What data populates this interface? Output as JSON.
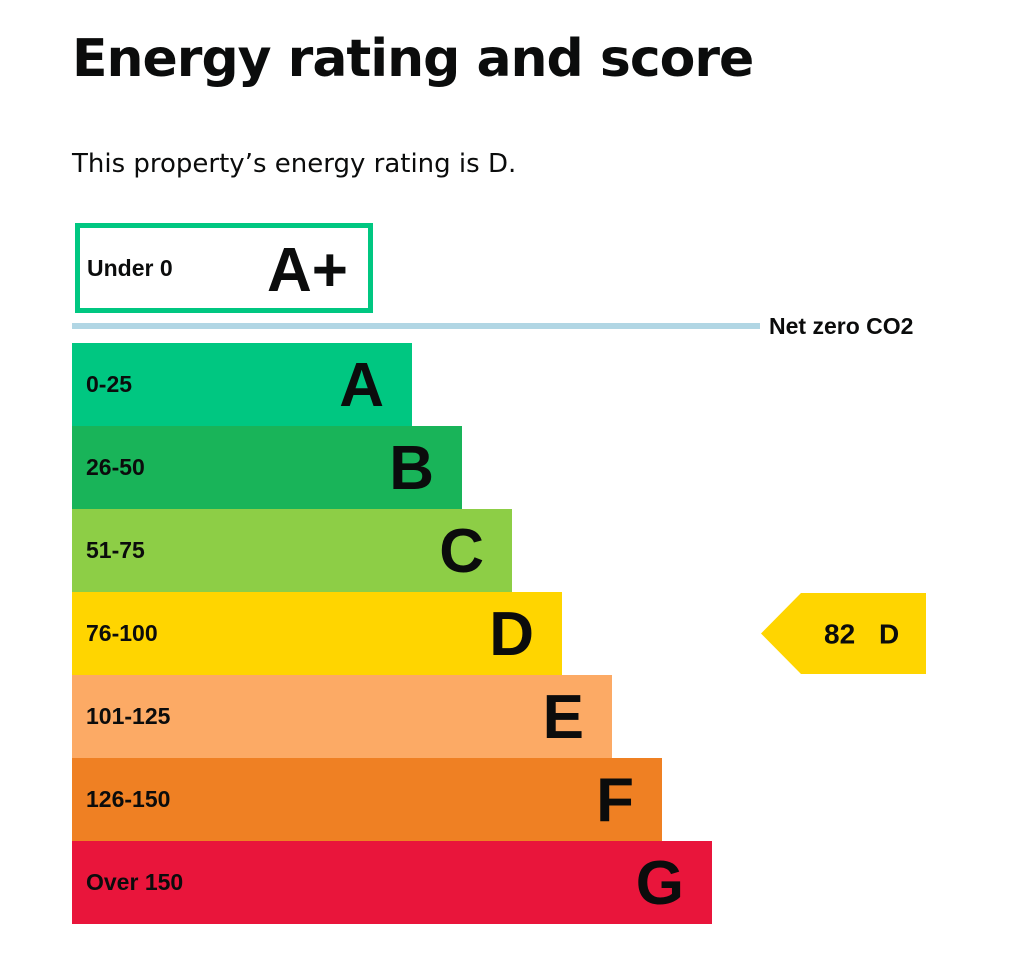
{
  "page": {
    "title": "Energy rating and score",
    "lede": "This property’s energy rating is D."
  },
  "chart_data": {
    "type": "bar",
    "title": "",
    "categories": [
      "A+",
      "A",
      "B",
      "C",
      "D",
      "E",
      "F",
      "G"
    ],
    "bands": [
      {
        "letter": "A+",
        "range": "Under 0",
        "color": "#00c781",
        "outlined": true
      },
      {
        "letter": "A",
        "range": "0-25",
        "color": "#00c781"
      },
      {
        "letter": "B",
        "range": "26-50",
        "color": "#19b459"
      },
      {
        "letter": "C",
        "range": "51-75",
        "color": "#8dce46"
      },
      {
        "letter": "D",
        "range": "76-100",
        "color": "#ffd500"
      },
      {
        "letter": "E",
        "range": "101-125",
        "color": "#fcaa65"
      },
      {
        "letter": "F",
        "range": "126-150",
        "color": "#ef8023"
      },
      {
        "letter": "G",
        "range": "Over 150",
        "color": "#e9153b"
      }
    ],
    "net_zero": {
      "label": "Net zero CO2",
      "color": "#b1d6e4"
    },
    "current": {
      "score": "82",
      "letter": "D",
      "color": "#ffd500"
    }
  }
}
